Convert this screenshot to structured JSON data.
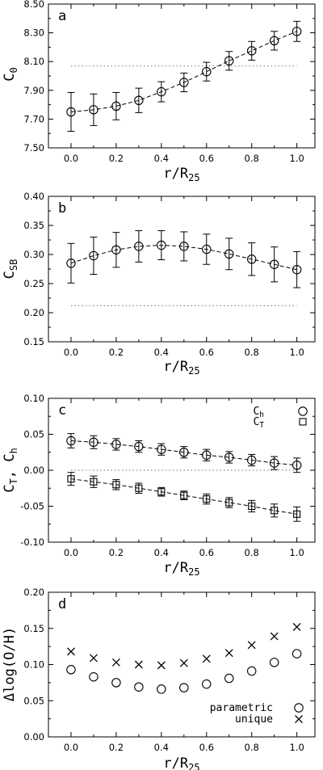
{
  "chart_data": [
    {
      "panel": "a",
      "type": "scatter",
      "xlabel": "r/R",
      "xlabel_sub": "25",
      "ylabel": "C",
      "ylabel_sub": "0",
      "xlim": [
        -0.1,
        1.08
      ],
      "ylim": [
        7.5,
        8.5
      ],
      "xticks": [
        0.0,
        0.2,
        0.4,
        0.6,
        0.8,
        1.0
      ],
      "xtick_labels": [
        "0.0",
        "0.2",
        "0.4",
        "0.6",
        "0.8",
        "1.0"
      ],
      "yticks": [
        7.5,
        7.7,
        7.9,
        8.1,
        8.3,
        8.5
      ],
      "ytick_labels": [
        "7.50",
        "7.70",
        "7.90",
        "8.10",
        "8.30",
        "8.50"
      ],
      "reference_line": 8.07,
      "series": [
        {
          "marker": "circle",
          "x": [
            0.0,
            0.1,
            0.2,
            0.3,
            0.4,
            0.5,
            0.6,
            0.7,
            0.8,
            0.9,
            1.0
          ],
          "y": [
            7.75,
            7.765,
            7.79,
            7.83,
            7.89,
            7.955,
            8.03,
            8.105,
            8.175,
            8.245,
            8.31
          ],
          "yerr": [
            0.135,
            0.11,
            0.095,
            0.085,
            0.07,
            0.065,
            0.065,
            0.065,
            0.065,
            0.065,
            0.07
          ],
          "fit_line": true
        }
      ]
    },
    {
      "panel": "b",
      "type": "scatter",
      "xlabel": "r/R",
      "xlabel_sub": "25",
      "ylabel": "C",
      "ylabel_sub": "SB",
      "xlim": [
        -0.1,
        1.08
      ],
      "ylim": [
        0.15,
        0.4
      ],
      "xticks": [
        0.0,
        0.2,
        0.4,
        0.6,
        0.8,
        1.0
      ],
      "xtick_labels": [
        "0.0",
        "0.2",
        "0.4",
        "0.6",
        "0.8",
        "1.0"
      ],
      "yticks": [
        0.15,
        0.2,
        0.25,
        0.3,
        0.35,
        0.4
      ],
      "ytick_labels": [
        "0.15",
        "0.20",
        "0.25",
        "0.30",
        "0.35",
        "0.40"
      ],
      "reference_line": 0.212,
      "series": [
        {
          "marker": "circle",
          "x": [
            0.0,
            0.1,
            0.2,
            0.3,
            0.4,
            0.5,
            0.6,
            0.7,
            0.8,
            0.9,
            1.0
          ],
          "y": [
            0.285,
            0.298,
            0.308,
            0.314,
            0.316,
            0.314,
            0.309,
            0.301,
            0.292,
            0.283,
            0.274
          ],
          "yerr": [
            0.034,
            0.032,
            0.03,
            0.027,
            0.025,
            0.025,
            0.026,
            0.027,
            0.028,
            0.03,
            0.031
          ],
          "fit_line": true
        }
      ]
    },
    {
      "panel": "c",
      "type": "scatter",
      "xlabel": "r/R",
      "xlabel_sub": "25",
      "ylabel": "C",
      "ylabel_sub": "T",
      "ylabel_rest": ", C",
      "ylabel_sub2": "h",
      "xlim": [
        -0.1,
        1.08
      ],
      "ylim": [
        -0.1,
        0.1
      ],
      "xticks": [
        0.0,
        0.2,
        0.4,
        0.6,
        0.8,
        1.0
      ],
      "xtick_labels": [
        "0.0",
        "0.2",
        "0.4",
        "0.6",
        "0.8",
        "1.0"
      ],
      "yticks": [
        -0.1,
        -0.05,
        0.0,
        0.05,
        0.1
      ],
      "ytick_labels": [
        "-0.10",
        "-0.05",
        "0.00",
        "0.05",
        "0.10"
      ],
      "reference_line": 0.0,
      "legend": {
        "placement": "top-right"
      },
      "series": [
        {
          "name": "C",
          "name_sub": "h",
          "marker": "circle",
          "x": [
            0.0,
            0.1,
            0.2,
            0.3,
            0.4,
            0.5,
            0.6,
            0.7,
            0.8,
            0.9,
            1.0
          ],
          "y": [
            0.041,
            0.039,
            0.036,
            0.033,
            0.029,
            0.025,
            0.021,
            0.018,
            0.014,
            0.01,
            0.007
          ],
          "yerr": [
            0.01,
            0.009,
            0.008,
            0.008,
            0.008,
            0.008,
            0.008,
            0.008,
            0.008,
            0.009,
            0.01
          ],
          "fit_line": true
        },
        {
          "name": "C",
          "name_sub": "T",
          "marker": "square",
          "x": [
            0.0,
            0.1,
            0.2,
            0.3,
            0.4,
            0.5,
            0.6,
            0.7,
            0.8,
            0.9,
            1.0
          ],
          "y": [
            -0.012,
            -0.016,
            -0.02,
            -0.025,
            -0.03,
            -0.035,
            -0.04,
            -0.045,
            -0.05,
            -0.056,
            -0.061
          ],
          "yerr": [
            0.009,
            0.008,
            0.007,
            0.007,
            0.006,
            0.006,
            0.007,
            0.007,
            0.008,
            0.009,
            0.01
          ],
          "fit_line": true
        }
      ]
    },
    {
      "panel": "d",
      "type": "scatter",
      "xlabel": "r/R",
      "xlabel_sub": "25",
      "ylabel": "Δlog(O/H)",
      "xlim": [
        -0.1,
        1.08
      ],
      "ylim": [
        0.0,
        0.2
      ],
      "xticks": [
        0.0,
        0.2,
        0.4,
        0.6,
        0.8,
        1.0
      ],
      "xtick_labels": [
        "0.0",
        "0.2",
        "0.4",
        "0.6",
        "0.8",
        "1.0"
      ],
      "yticks": [
        0.0,
        0.05,
        0.1,
        0.15,
        0.2
      ],
      "ytick_labels": [
        "0.00",
        "0.05",
        "0.10",
        "0.15",
        "0.20"
      ],
      "legend": {
        "placement": "bottom-right"
      },
      "series": [
        {
          "name": "parametric",
          "marker": "circle",
          "x": [
            0.0,
            0.1,
            0.2,
            0.3,
            0.4,
            0.5,
            0.6,
            0.7,
            0.8,
            0.9,
            1.0
          ],
          "y": [
            0.093,
            0.083,
            0.075,
            0.069,
            0.066,
            0.068,
            0.073,
            0.081,
            0.091,
            0.103,
            0.115
          ]
        },
        {
          "name": "unique",
          "marker": "cross",
          "x": [
            0.0,
            0.1,
            0.2,
            0.3,
            0.4,
            0.5,
            0.6,
            0.7,
            0.8,
            0.9,
            1.0
          ],
          "y": [
            0.118,
            0.109,
            0.103,
            0.1,
            0.099,
            0.102,
            0.108,
            0.116,
            0.127,
            0.139,
            0.152
          ]
        }
      ]
    }
  ]
}
